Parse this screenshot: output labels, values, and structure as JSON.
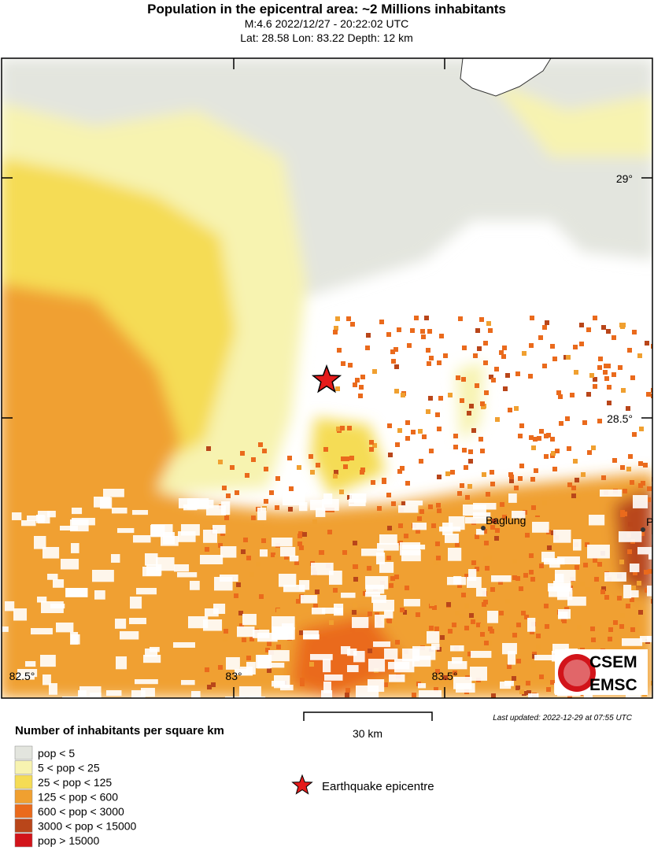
{
  "header": {
    "title": "Population in the epicentral area: ~2 Millions inhabitants",
    "lines": [
      "M:4.6 2022/12/27 - 20:22:02 UTC",
      "Lat: 28.58 Lon: 83.22 Depth: 12 km"
    ]
  },
  "map": {
    "lat_labels": [
      "29°",
      "28.5°"
    ],
    "lon_labels": [
      "82.5°",
      "83°",
      "83.5°"
    ],
    "places": [
      "Baglung",
      "P"
    ],
    "scale_label": "30 km",
    "updated": "Last updated: 2022-12-29 at 07:55 UTC",
    "logo": [
      "CSEM",
      "EMSC"
    ]
  },
  "legend": {
    "title": "Number of inhabitants per square km",
    "items": [
      {
        "label": "pop < 5",
        "color": "#e3e5de"
      },
      {
        "label": "5 < pop < 25",
        "color": "#f7f3b0"
      },
      {
        "label": "25 < pop < 125",
        "color": "#f5dc55"
      },
      {
        "label": "125 < pop < 600",
        "color": "#f0a030"
      },
      {
        "label": "600 < pop < 3000",
        "color": "#ea6a1c"
      },
      {
        "label": "3000 < pop < 15000",
        "color": "#b9461a"
      },
      {
        "label": "pop > 15000",
        "color": "#d2141a"
      }
    ],
    "epicentre_label": "Earthquake epicentre"
  }
}
